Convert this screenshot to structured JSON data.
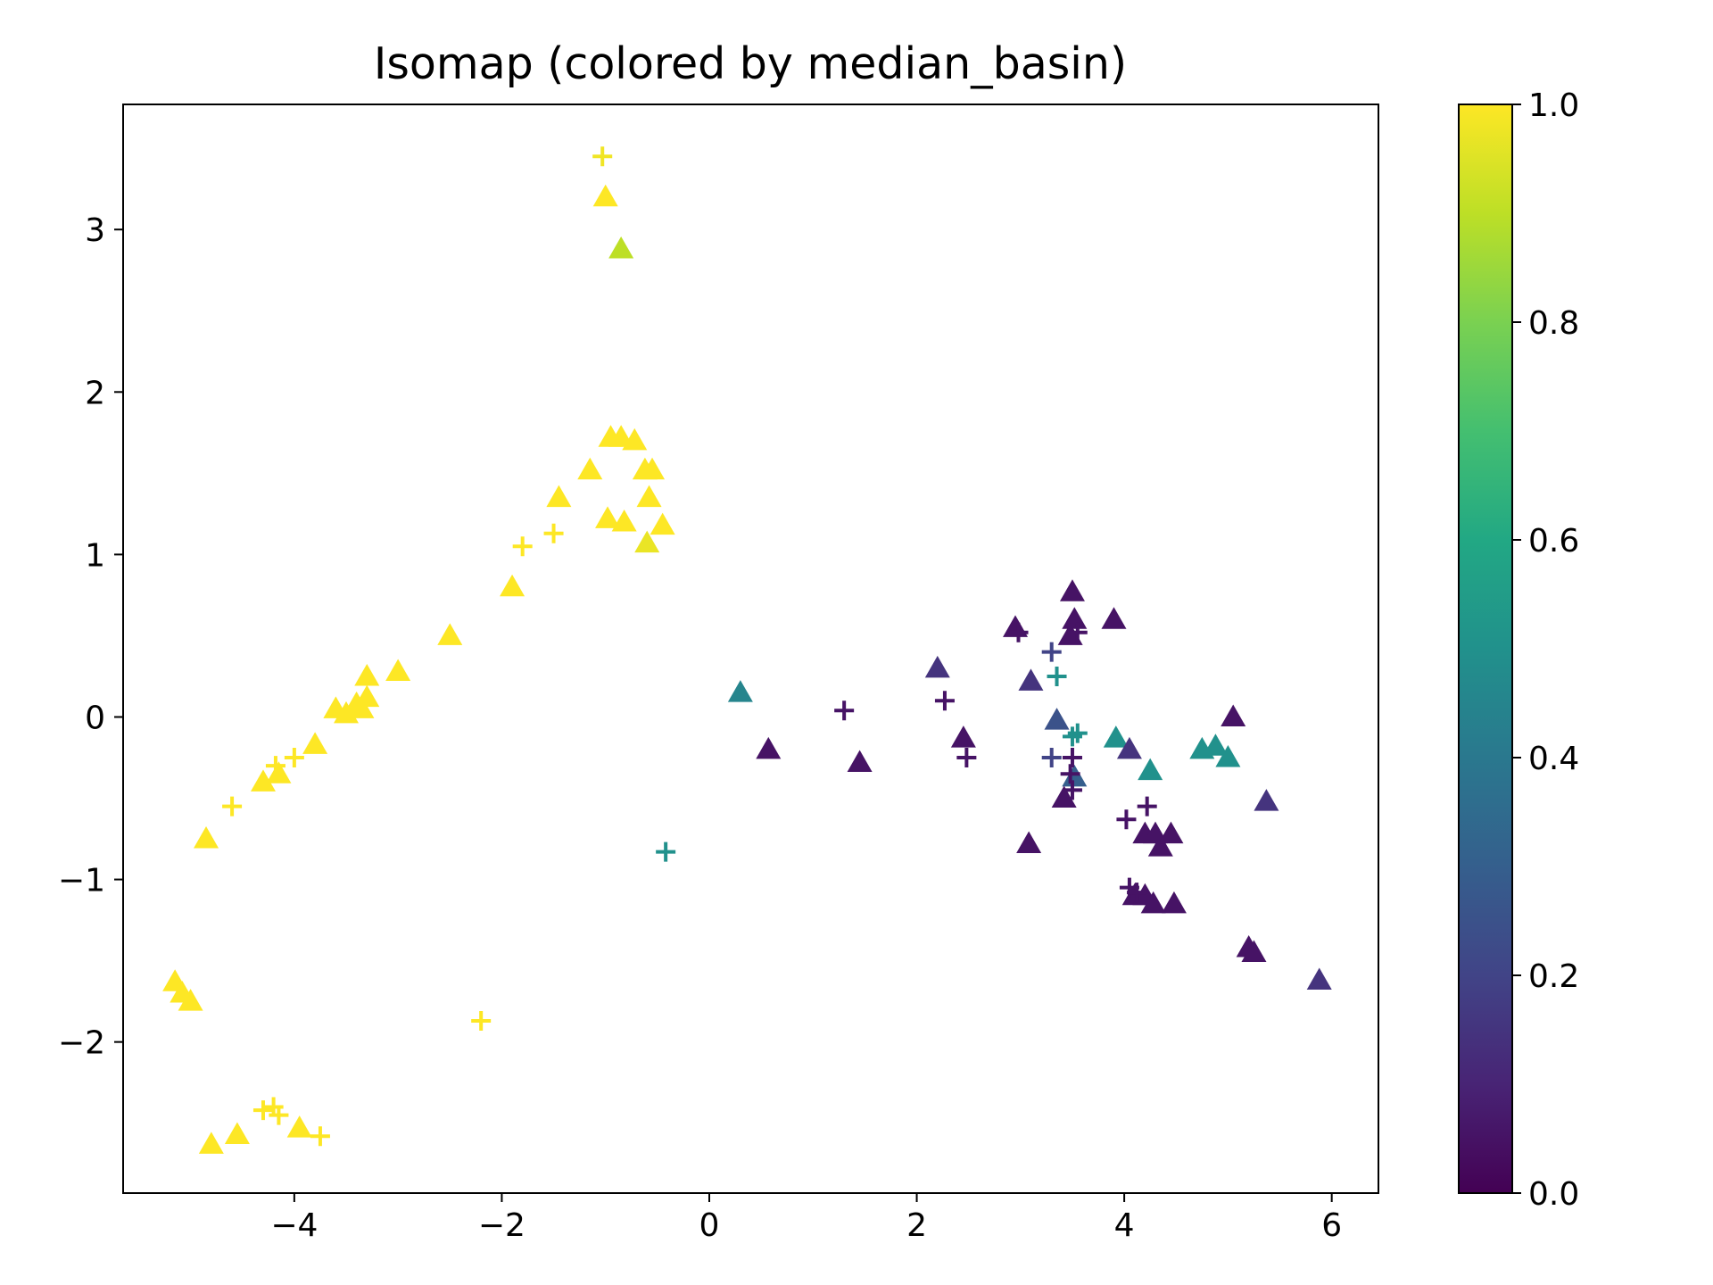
{
  "chart_data": {
    "type": "scatter",
    "title": "Isomap (colored by median_basin)",
    "xlabel": "",
    "ylabel": "",
    "xlim": [
      -5.65,
      6.45
    ],
    "ylim": [
      -2.93,
      3.77
    ],
    "xticks": [
      -4,
      -2,
      0,
      2,
      4,
      6
    ],
    "xtick_labels": [
      "−4",
      "−2",
      "0",
      "2",
      "4",
      "6"
    ],
    "yticks": [
      -2,
      -1,
      0,
      1,
      2,
      3
    ],
    "ytick_labels": [
      "−2",
      "−1",
      "0",
      "1",
      "2",
      "3"
    ],
    "grid": false,
    "colorbar": {
      "colormap": "viridis",
      "range": [
        0.0,
        1.0
      ],
      "ticks": [
        0.0,
        0.2,
        0.4,
        0.6,
        0.8,
        1.0
      ],
      "tick_labels": [
        "0.0",
        "0.2",
        "0.4",
        "0.6",
        "0.8",
        "1.0"
      ]
    },
    "series": [
      {
        "name": "triangle",
        "marker": "triangle",
        "points": [
          [
            -1.0,
            3.2,
            1.0
          ],
          [
            -0.85,
            2.88,
            0.9
          ],
          [
            -0.95,
            1.72,
            1.0
          ],
          [
            -0.85,
            1.72,
            1.0
          ],
          [
            -0.72,
            1.7,
            1.0
          ],
          [
            -0.62,
            1.52,
            1.0
          ],
          [
            -0.55,
            1.52,
            1.0
          ],
          [
            -1.15,
            1.52,
            1.0
          ],
          [
            -1.45,
            1.35,
            1.0
          ],
          [
            -0.58,
            1.35,
            1.0
          ],
          [
            -0.98,
            1.22,
            1.0
          ],
          [
            -0.82,
            1.2,
            1.0
          ],
          [
            -0.45,
            1.18,
            1.0
          ],
          [
            -0.6,
            1.07,
            0.97
          ],
          [
            -1.9,
            0.8,
            1.0
          ],
          [
            -2.5,
            0.5,
            1.0
          ],
          [
            -3.0,
            0.28,
            1.0
          ],
          [
            -3.3,
            0.25,
            1.0
          ],
          [
            -3.3,
            0.12,
            1.0
          ],
          [
            -3.4,
            0.08,
            1.0
          ],
          [
            -3.6,
            0.05,
            1.0
          ],
          [
            -3.5,
            0.02,
            1.0
          ],
          [
            -3.35,
            0.05,
            1.0
          ],
          [
            -3.8,
            -0.17,
            1.0
          ],
          [
            -4.15,
            -0.35,
            1.0
          ],
          [
            -4.3,
            -0.4,
            1.0
          ],
          [
            -4.85,
            -0.75,
            1.0
          ],
          [
            -5.15,
            -1.63,
            1.0
          ],
          [
            -5.08,
            -1.7,
            1.0
          ],
          [
            -5.0,
            -1.75,
            1.0
          ],
          [
            -4.8,
            -2.63,
            1.0
          ],
          [
            -4.55,
            -2.57,
            1.0
          ],
          [
            -3.95,
            -2.53,
            1.0
          ],
          [
            0.3,
            0.15,
            0.45
          ],
          [
            0.57,
            -0.2,
            0.05
          ],
          [
            1.45,
            -0.28,
            0.05
          ],
          [
            2.2,
            0.3,
            0.15
          ],
          [
            2.45,
            -0.13,
            0.05
          ],
          [
            2.95,
            0.55,
            0.05
          ],
          [
            3.1,
            0.22,
            0.15
          ],
          [
            3.08,
            -0.78,
            0.05
          ],
          [
            3.5,
            0.77,
            0.05
          ],
          [
            3.52,
            0.6,
            0.05
          ],
          [
            3.48,
            0.5,
            0.05
          ],
          [
            3.35,
            -0.02,
            0.25
          ],
          [
            3.9,
            0.6,
            0.05
          ],
          [
            3.92,
            -0.13,
            0.5
          ],
          [
            4.05,
            -0.2,
            0.15
          ],
          [
            4.25,
            -0.33,
            0.5
          ],
          [
            3.52,
            -0.37,
            0.3
          ],
          [
            3.42,
            -0.5,
            0.05
          ],
          [
            4.2,
            -0.72,
            0.05
          ],
          [
            4.3,
            -0.72,
            0.05
          ],
          [
            4.35,
            -0.8,
            0.05
          ],
          [
            4.45,
            -0.72,
            0.05
          ],
          [
            4.1,
            -1.1,
            0.05
          ],
          [
            4.2,
            -1.1,
            0.05
          ],
          [
            4.28,
            -1.15,
            0.05
          ],
          [
            4.48,
            -1.15,
            0.05
          ],
          [
            4.75,
            -0.2,
            0.5
          ],
          [
            4.88,
            -0.18,
            0.5
          ],
          [
            5.0,
            -0.25,
            0.5
          ],
          [
            5.05,
            0.0,
            0.05
          ],
          [
            5.37,
            -0.52,
            0.15
          ],
          [
            5.2,
            -1.42,
            0.05
          ],
          [
            5.25,
            -1.45,
            0.05
          ],
          [
            5.88,
            -1.62,
            0.15
          ]
        ]
      },
      {
        "name": "plus",
        "marker": "plus",
        "points": [
          [
            -1.03,
            3.45,
            0.98
          ],
          [
            -1.8,
            1.05,
            1.0
          ],
          [
            -1.5,
            1.13,
            1.0
          ],
          [
            -4.6,
            -0.55,
            1.0
          ],
          [
            -4.18,
            -0.3,
            1.0
          ],
          [
            -4.0,
            -0.25,
            1.0
          ],
          [
            -2.2,
            -1.87,
            1.0
          ],
          [
            -4.3,
            -2.42,
            1.0
          ],
          [
            -4.2,
            -2.4,
            1.0
          ],
          [
            -4.15,
            -2.45,
            1.0
          ],
          [
            -3.75,
            -2.58,
            1.0
          ],
          [
            -0.42,
            -0.83,
            0.5
          ],
          [
            1.3,
            0.04,
            0.05
          ],
          [
            2.27,
            0.1,
            0.05
          ],
          [
            2.48,
            -0.25,
            0.05
          ],
          [
            2.98,
            0.52,
            0.05
          ],
          [
            3.3,
            0.4,
            0.2
          ],
          [
            3.35,
            0.25,
            0.5
          ],
          [
            3.3,
            -0.25,
            0.2
          ],
          [
            3.55,
            -0.1,
            0.5
          ],
          [
            3.5,
            -0.12,
            0.5
          ],
          [
            3.5,
            -0.25,
            0.05
          ],
          [
            3.48,
            -0.35,
            0.05
          ],
          [
            3.5,
            -0.45,
            0.05
          ],
          [
            3.55,
            0.52,
            0.05
          ],
          [
            4.02,
            -0.63,
            0.05
          ],
          [
            4.22,
            -0.55,
            0.05
          ],
          [
            4.05,
            -1.05,
            0.05
          ],
          [
            4.12,
            -1.08,
            0.05
          ]
        ]
      }
    ]
  }
}
